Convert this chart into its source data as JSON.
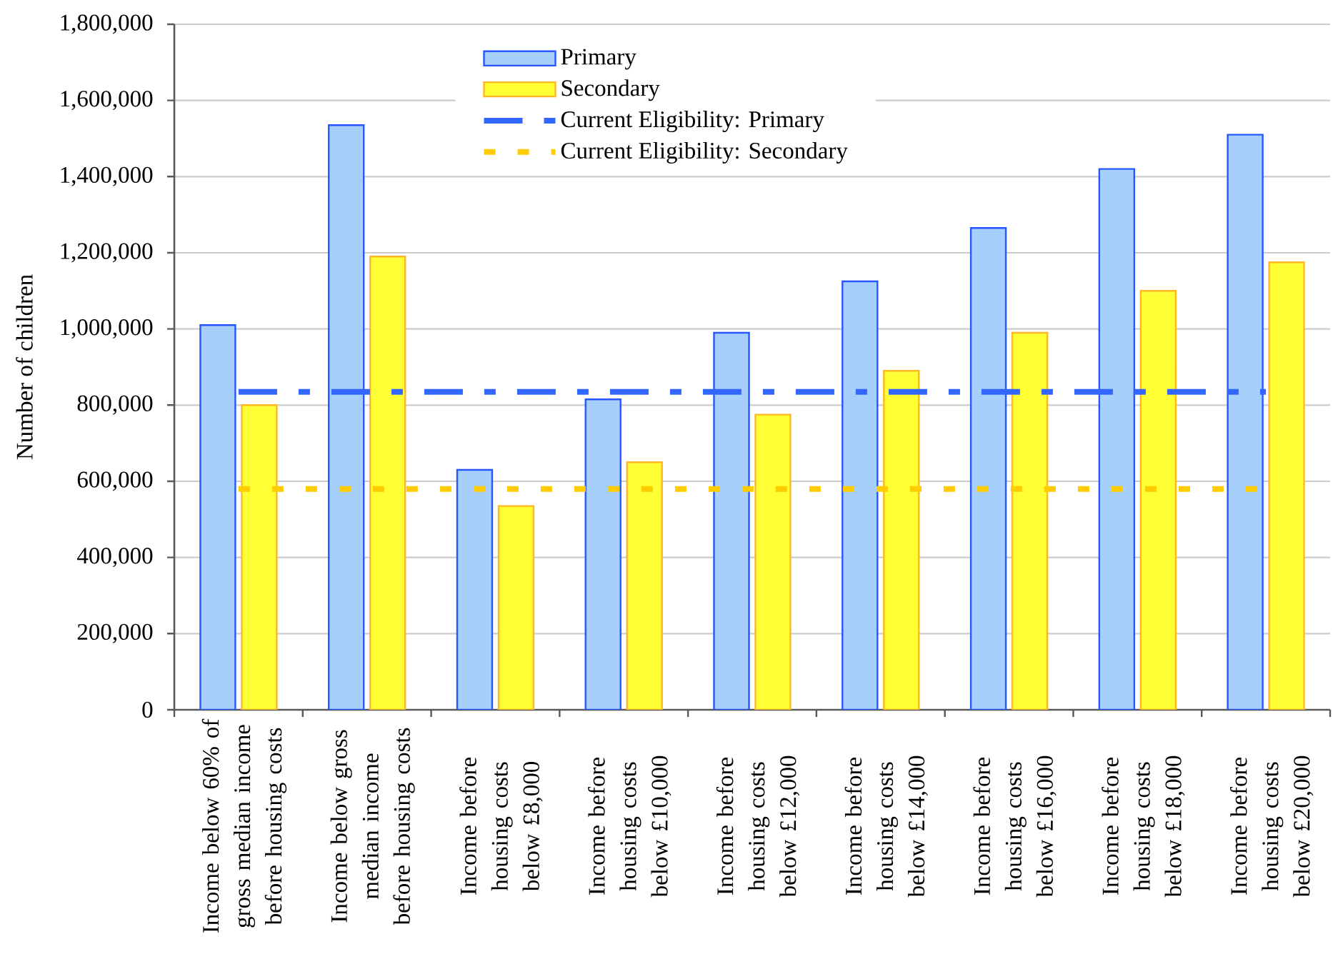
{
  "chart_data": {
    "type": "bar",
    "ylabel": "Number of children",
    "categories": [
      "Income below 60% of gross median income before housing costs",
      "Income below gross median income before housing costs",
      "Income before housing costs below £8,000",
      "Income before housing costs below £10,000",
      "Income before housing costs below £12,000",
      "Income before housing costs below £14,000",
      "Income before housing costs below £16,000",
      "Income before housing costs below £18,000",
      "Income before housing costs below £20,000"
    ],
    "series": [
      {
        "name": "Primary",
        "color": "#a6cffc",
        "values": [
          1010000,
          1535000,
          630000,
          815000,
          990000,
          1125000,
          1265000,
          1420000,
          1510000
        ]
      },
      {
        "name": "Secondary",
        "color": "#ffff33",
        "values": [
          800000,
          1190000,
          535000,
          650000,
          775000,
          890000,
          990000,
          1100000,
          1175000
        ]
      }
    ],
    "ref_lines": [
      {
        "axis": "y",
        "value": 835000,
        "label": "Current Eligibility: Primary",
        "color": "#3366ff",
        "line_style": "dashed"
      },
      {
        "axis": "y",
        "value": 580000,
        "label": "Current Eligibility: Secondary",
        "color": "#ffcc00",
        "line_style": "dotted"
      }
    ],
    "ylim": [
      0,
      1800000
    ],
    "yticks": [
      0,
      {
        "value": 200000,
        "label": "200,000"
      },
      {
        "value": 400000,
        "label": "400,000"
      },
      {
        "value": 600000,
        "label": "600,000"
      },
      {
        "value": 800000,
        "label": "800,000"
      },
      {
        "value": 1000000,
        "label": "1,000,000"
      },
      {
        "value": 1200000,
        "label": "1,200,000"
      },
      {
        "value": 1400000,
        "label": "1,400,000"
      },
      {
        "value": 1600000,
        "label": "1,600,000"
      },
      {
        "value": 1800000,
        "label": "1,800,000"
      }
    ],
    "grid": "y",
    "legend": "top"
  }
}
